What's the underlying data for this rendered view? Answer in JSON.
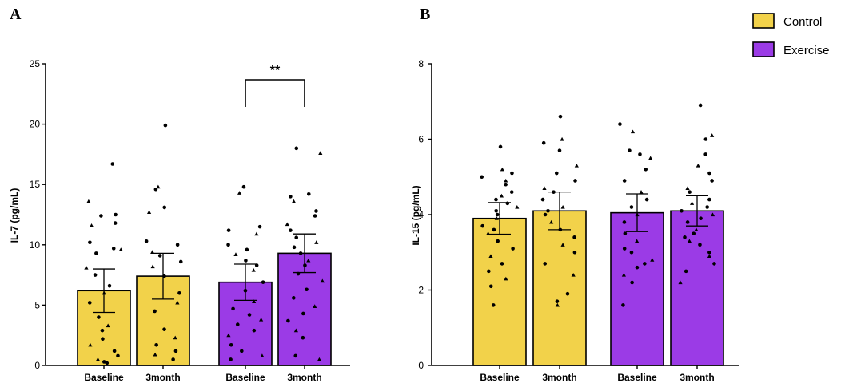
{
  "legend": [
    {
      "label": "Control",
      "color": "#F2D24A"
    },
    {
      "label": "Exercise",
      "color": "#9B3BE6"
    }
  ],
  "chart_data": [
    {
      "panel": "A",
      "type": "bar",
      "ylabel": "IL-7 (pg/mL)",
      "ylim": [
        0,
        25
      ],
      "yticks": [
        0,
        5,
        10,
        15,
        20,
        25
      ],
      "categories": [
        "Baseline",
        "3month",
        "Baseline",
        "3month"
      ],
      "groups": [
        "Control",
        "Control",
        "Exercise",
        "Exercise"
      ],
      "means": [
        6.2,
        7.4,
        6.9,
        9.3
      ],
      "sem": [
        1.8,
        1.9,
        1.5,
        1.6
      ],
      "significance": [
        {
          "from": 2,
          "to": 3,
          "label": "**"
        }
      ],
      "points": [
        [
          16.7,
          13.6,
          12.4,
          12.5,
          11.6,
          11.8,
          10.2,
          9.6,
          9.3,
          9.7,
          8.1,
          7.5,
          6.6,
          6.0,
          5.2,
          4.0,
          3.3,
          2.9,
          2.2,
          1.7,
          1.2,
          0.8,
          0.5,
          0.3,
          0.2
        ],
        [
          19.9,
          14.8,
          14.6,
          13.1,
          12.7,
          10.3,
          10.0,
          9.4,
          9.1,
          8.6,
          8.2,
          7.4,
          6.0,
          5.2,
          4.5,
          3.0,
          2.3,
          1.7,
          1.2,
          0.9,
          0.5
        ],
        [
          14.8,
          14.3,
          11.5,
          11.2,
          10.9,
          10.0,
          9.6,
          9.2,
          8.7,
          8.3,
          7.9,
          6.9,
          6.2,
          5.3,
          4.7,
          4.2,
          3.8,
          3.4,
          2.9,
          2.5,
          1.7,
          1.2,
          0.8,
          0.5
        ],
        [
          18.0,
          17.6,
          14.2,
          14.0,
          13.6,
          12.8,
          12.4,
          11.7,
          11.2,
          10.6,
          10.2,
          9.8,
          9.3,
          8.7,
          8.3,
          7.6,
          7.0,
          6.3,
          5.6,
          4.9,
          4.3,
          3.7,
          2.9,
          2.3,
          0.8,
          0.5
        ]
      ]
    },
    {
      "panel": "B",
      "type": "bar",
      "ylabel": "IL-15 (pg/mL)",
      "ylim": [
        0,
        8
      ],
      "yticks": [
        0,
        2,
        4,
        6,
        8
      ],
      "categories": [
        "Baseline",
        "3month",
        "Baseline",
        "3month"
      ],
      "groups": [
        "Control",
        "Control",
        "Exercise",
        "Exercise"
      ],
      "means": [
        3.9,
        4.1,
        4.05,
        4.1
      ],
      "sem": [
        0.42,
        0.5,
        0.5,
        0.4
      ],
      "significance": [],
      "points": [
        [
          5.8,
          5.2,
          5.1,
          5.0,
          4.9,
          4.8,
          4.6,
          4.5,
          4.4,
          4.3,
          4.2,
          4.1,
          4.0,
          3.9,
          3.7,
          3.6,
          3.5,
          3.3,
          3.1,
          2.9,
          2.7,
          2.5,
          2.3,
          2.1,
          1.6
        ],
        [
          6.6,
          6.0,
          5.9,
          5.7,
          5.3,
          5.1,
          4.9,
          4.7,
          4.6,
          4.4,
          4.2,
          4.1,
          4.0,
          3.8,
          3.6,
          3.4,
          3.2,
          3.0,
          2.7,
          2.4,
          1.9,
          1.7,
          1.6
        ],
        [
          6.4,
          6.2,
          5.7,
          5.6,
          5.5,
          5.2,
          4.9,
          4.6,
          4.4,
          4.2,
          4.0,
          3.8,
          3.5,
          3.3,
          3.1,
          3.0,
          2.8,
          2.7,
          2.6,
          2.4,
          2.2,
          1.6
        ],
        [
          6.9,
          6.1,
          6.0,
          5.6,
          5.3,
          5.1,
          4.9,
          4.7,
          4.6,
          4.4,
          4.3,
          4.2,
          4.1,
          4.0,
          3.9,
          3.8,
          3.6,
          3.5,
          3.4,
          3.3,
          3.2,
          3.0,
          2.9,
          2.7,
          2.5,
          2.2
        ]
      ]
    }
  ]
}
